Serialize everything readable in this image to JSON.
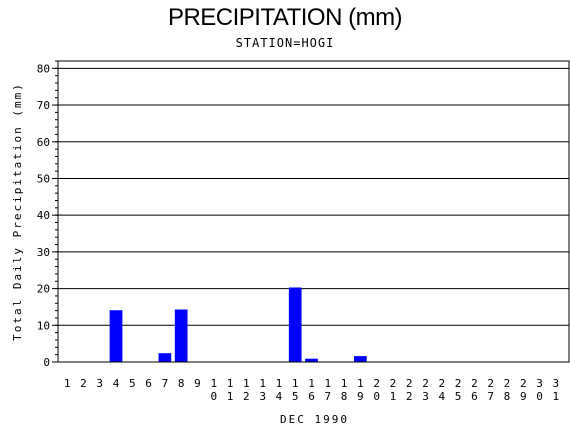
{
  "header": {
    "title": "PRECIPITATION (mm)",
    "subtitle": "STATION=HOGI"
  },
  "chart_data": {
    "type": "bar",
    "title": "PRECIPITATION (mm)",
    "subtitle": "STATION=HOGI",
    "xlabel": "DEC 1990",
    "ylabel": "Total Daily Precipitation (mm)",
    "ylim": [
      0,
      82
    ],
    "yticks": [
      0,
      10,
      20,
      30,
      40,
      50,
      60,
      70,
      80
    ],
    "grid": true,
    "bar_color": "#0000ff",
    "categories": [
      "1",
      "2",
      "3",
      "4",
      "5",
      "6",
      "7",
      "8",
      "9",
      "10",
      "11",
      "12",
      "13",
      "14",
      "15",
      "16",
      "17",
      "18",
      "19",
      "20",
      "21",
      "22",
      "23",
      "24",
      "25",
      "26",
      "27",
      "28",
      "29",
      "30",
      "31"
    ],
    "values": [
      0,
      0,
      0,
      14.1,
      0,
      0,
      2.4,
      14.3,
      0,
      0,
      0,
      0,
      0,
      0,
      20.3,
      0.9,
      0,
      0,
      1.6,
      0,
      0,
      0,
      0,
      0,
      0,
      0,
      0,
      0,
      0,
      0,
      0
    ]
  }
}
